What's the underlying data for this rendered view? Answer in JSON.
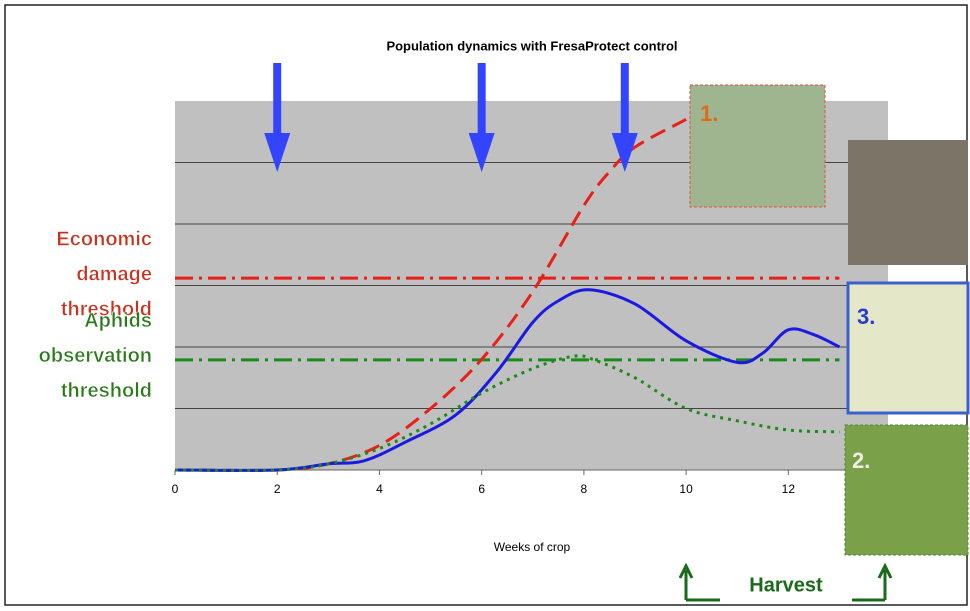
{
  "chart_data": {
    "type": "line",
    "title": "Population dynamics with FresaProtect control",
    "x_label": "Weeks of crop",
    "xlim": [
      0,
      13.95
    ],
    "xticks": [
      0,
      2,
      4,
      6,
      8,
      10,
      12
    ],
    "ylim": [
      0,
      6
    ],
    "yticks": [
      1,
      2,
      3,
      4,
      5
    ],
    "grid": true,
    "series": [
      {
        "color": "#e8201a",
        "dash": "dashed",
        "x": [
          0,
          2,
          3,
          4,
          5,
          6,
          7,
          8,
          8.5,
          9,
          10
        ],
        "values": [
          0,
          0,
          0.1,
          0.4,
          1.0,
          1.8,
          2.9,
          4.3,
          4.85,
          5.25,
          5.7
        ]
      },
      {
        "color": "#1a1ae0",
        "dash": "solid",
        "x": [
          0,
          2,
          3,
          3.7,
          4.5,
          5.5,
          6.3,
          7,
          7.5,
          8.1,
          9,
          10,
          11,
          11.5,
          12,
          12.5,
          13
        ],
        "values": [
          0,
          0,
          0.1,
          0.15,
          0.45,
          0.9,
          1.6,
          2.4,
          2.75,
          2.93,
          2.7,
          2.1,
          1.75,
          1.9,
          2.28,
          2.2,
          2.0
        ]
      },
      {
        "color": "#1a8a1a",
        "dash": "dotted",
        "x": [
          0,
          2,
          3,
          4,
          5,
          6,
          7,
          7.8,
          8.2,
          9,
          10,
          11,
          12,
          13
        ],
        "values": [
          0,
          0,
          0.1,
          0.35,
          0.75,
          1.25,
          1.65,
          1.85,
          1.79,
          1.5,
          1.0,
          0.8,
          0.65,
          0.62
        ]
      }
    ],
    "thresholds": [
      {
        "value": 3.12,
        "color": "#e8201a",
        "lines": [
          "Economic",
          "damage",
          "threshold"
        ],
        "text_color": "#c8321e"
      },
      {
        "value": 1.79,
        "color": "#1a8a1a",
        "lines": [
          "Aphids",
          "observation",
          "threshold"
        ],
        "text_color": "#2a7a1a"
      }
    ],
    "arrows_x": [
      2,
      6,
      8.8
    ],
    "photos": [
      "1.",
      "2.",
      "3."
    ],
    "harvest": "Harvest"
  }
}
